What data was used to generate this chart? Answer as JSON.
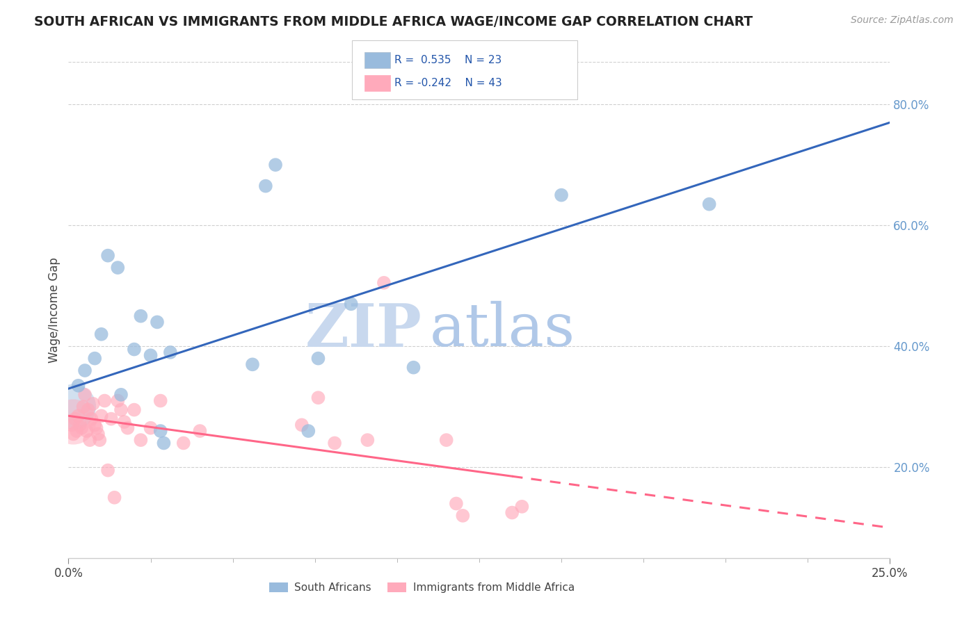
{
  "title": "SOUTH AFRICAN VS IMMIGRANTS FROM MIDDLE AFRICA WAGE/INCOME GAP CORRELATION CHART",
  "source": "Source: ZipAtlas.com",
  "ylabel": "Wage/Income Gap",
  "legend_label1": "South Africans",
  "legend_label2": "Immigrants from Middle Africa",
  "R1": 0.535,
  "N1": 23,
  "R2": -0.242,
  "N2": 43,
  "xlim": [
    0.0,
    25.0
  ],
  "ylim": [
    5.0,
    87.0
  ],
  "yticks": [
    20.0,
    40.0,
    60.0,
    80.0
  ],
  "blue_color": "#99BBDD",
  "pink_color": "#FFAABB",
  "blue_line_color": "#3366BB",
  "pink_line_color": "#FF6688",
  "watermark_zip": "ZIP",
  "watermark_atlas": "atlas",
  "background_color": "#FFFFFF",
  "grid_color": "#BBBBBB",
  "blue_x": [
    0.3,
    0.5,
    0.8,
    1.0,
    1.2,
    1.5,
    1.6,
    2.0,
    2.2,
    2.5,
    2.7,
    3.1,
    5.6,
    6.0,
    6.3,
    7.6,
    8.6,
    10.5,
    15.0,
    19.5,
    2.8,
    2.9,
    7.3
  ],
  "blue_y": [
    33.5,
    36.0,
    38.0,
    42.0,
    55.0,
    53.0,
    32.0,
    39.5,
    45.0,
    38.5,
    44.0,
    39.0,
    37.0,
    66.5,
    70.0,
    38.0,
    47.0,
    36.5,
    65.0,
    63.5,
    26.0,
    24.0,
    26.0
  ],
  "pink_x": [
    0.1,
    0.15,
    0.2,
    0.25,
    0.3,
    0.35,
    0.4,
    0.45,
    0.5,
    0.55,
    0.6,
    0.65,
    0.7,
    0.75,
    0.8,
    0.85,
    0.9,
    0.95,
    1.0,
    1.1,
    1.2,
    1.3,
    1.4,
    1.5,
    1.6,
    1.7,
    1.8,
    2.0,
    2.2,
    2.5,
    2.8,
    3.5,
    4.0,
    7.1,
    7.6,
    8.1,
    9.1,
    9.6,
    12.0,
    13.5,
    13.8,
    11.5,
    11.8
  ],
  "pink_y": [
    27.0,
    25.5,
    28.0,
    26.0,
    28.5,
    27.0,
    26.5,
    30.0,
    32.0,
    26.0,
    29.5,
    24.5,
    28.0,
    30.5,
    27.0,
    26.5,
    25.5,
    24.5,
    28.5,
    31.0,
    19.5,
    28.0,
    15.0,
    31.0,
    29.5,
    27.5,
    26.5,
    29.5,
    24.5,
    26.5,
    31.0,
    24.0,
    26.0,
    27.0,
    31.5,
    24.0,
    24.5,
    50.5,
    12.0,
    12.5,
    13.5,
    24.5,
    14.0
  ],
  "big_blue_x": [
    0.15
  ],
  "big_blue_y": [
    30.0
  ],
  "big_pink_x": [
    0.15
  ],
  "big_pink_y": [
    27.5
  ],
  "blue_line_x0": 0.0,
  "blue_line_y0": 33.0,
  "blue_line_x1": 25.0,
  "blue_line_y1": 77.0,
  "pink_line_x0": 0.0,
  "pink_line_y0": 28.5,
  "pink_line_x1": 25.0,
  "pink_line_y1": 10.0,
  "pink_solid_end": 13.5,
  "pink_dash_start": 13.5
}
